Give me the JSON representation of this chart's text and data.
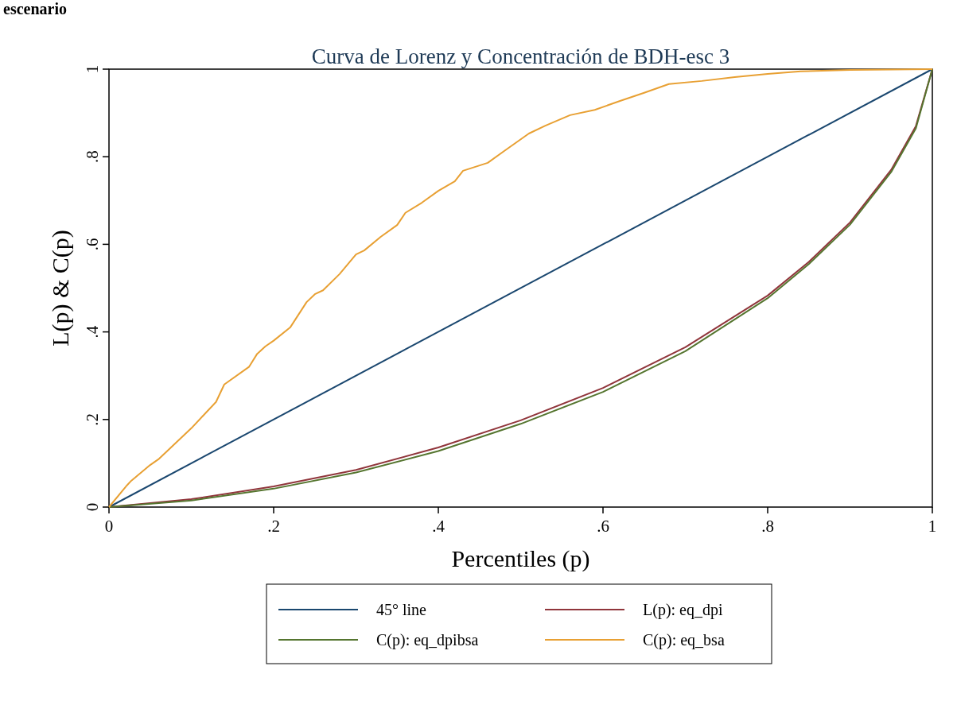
{
  "chart_data": {
    "type": "line",
    "title": "Curva de Lorenz y Concentración de BDH-esc 3",
    "xlabel": "Percentiles (p)",
    "ylabel": "L(p) & C(p)",
    "annotations": [
      "escenario"
    ],
    "xlim": [
      0,
      1
    ],
    "ylim": [
      0,
      1
    ],
    "xticks": [
      0,
      {
        "value": 0.2,
        "label": ".2"
      },
      {
        "value": 0.4,
        "label": ".4"
      },
      {
        "value": 0.6,
        "label": ".6"
      },
      {
        "value": 0.8,
        "label": ".8"
      },
      1
    ],
    "yticks": [
      0,
      {
        "value": 0.2,
        "label": ".2"
      },
      {
        "value": 0.4,
        "label": ".4"
      },
      {
        "value": 0.6,
        "label": ".6"
      },
      {
        "value": 0.8,
        "label": ".8"
      },
      1
    ],
    "grid": false,
    "legend": "bottom",
    "line_style": "solid",
    "marker": "none",
    "series": [
      {
        "name": "45° line",
        "color": "#1a476f",
        "x": [
          0,
          1
        ],
        "values": [
          0,
          1
        ]
      },
      {
        "name": "L(p): eq_dpi",
        "color": "#90353b",
        "x": [
          0,
          0.1,
          0.2,
          0.3,
          0.4,
          0.5,
          0.6,
          0.7,
          0.8,
          0.85,
          0.9,
          0.95,
          0.98,
          1
        ],
        "values": [
          0,
          0.018,
          0.047,
          0.085,
          0.136,
          0.198,
          0.272,
          0.365,
          0.483,
          0.56,
          0.65,
          0.77,
          0.87,
          1
        ]
      },
      {
        "name": "C(p): eq_dpibsa",
        "color": "#55752f",
        "x": [
          0,
          0.1,
          0.2,
          0.3,
          0.4,
          0.5,
          0.6,
          0.7,
          0.8,
          0.85,
          0.9,
          0.95,
          0.98,
          1
        ],
        "values": [
          0,
          0.015,
          0.042,
          0.079,
          0.128,
          0.19,
          0.263,
          0.356,
          0.477,
          0.555,
          0.645,
          0.765,
          0.865,
          1
        ]
      },
      {
        "name": "C(p): eq_bsa",
        "color": "#e8a033",
        "x": [
          0,
          0.022,
          0.027,
          0.05,
          0.06,
          0.1,
          0.12,
          0.13,
          0.14,
          0.17,
          0.18,
          0.19,
          0.2,
          0.22,
          0.24,
          0.25,
          0.26,
          0.28,
          0.3,
          0.31,
          0.33,
          0.35,
          0.36,
          0.38,
          0.4,
          0.42,
          0.43,
          0.46,
          0.48,
          0.51,
          0.53,
          0.56,
          0.59,
          0.62,
          0.65,
          0.68,
          0.72,
          0.76,
          0.8,
          0.84,
          0.9,
          1
        ],
        "values": [
          0,
          0.05,
          0.06,
          0.096,
          0.109,
          0.18,
          0.22,
          0.24,
          0.28,
          0.32,
          0.35,
          0.367,
          0.38,
          0.41,
          0.468,
          0.486,
          0.495,
          0.532,
          0.577,
          0.586,
          0.617,
          0.644,
          0.672,
          0.695,
          0.722,
          0.744,
          0.768,
          0.786,
          0.813,
          0.853,
          0.871,
          0.895,
          0.907,
          0.927,
          0.946,
          0.966,
          0.973,
          0.982,
          0.989,
          0.995,
          0.998,
          1
        ]
      }
    ]
  }
}
